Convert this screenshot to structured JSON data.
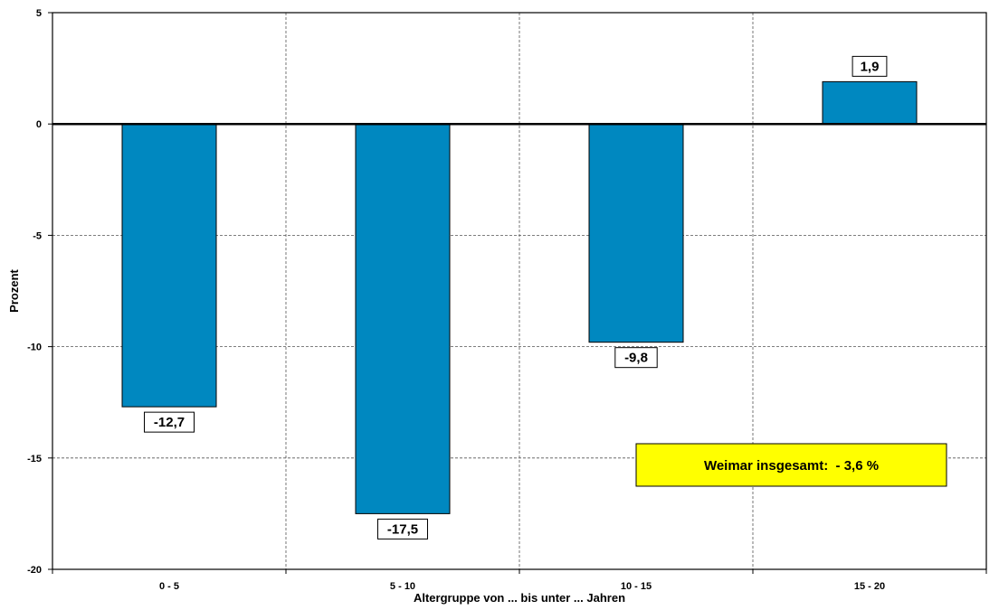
{
  "chart_data": {
    "type": "bar",
    "categories": [
      "0 - 5",
      "5 - 10",
      "10 - 15",
      "15 - 20"
    ],
    "values": [
      -12.7,
      -17.5,
      -9.8,
      1.9
    ],
    "value_labels": [
      "-12,7",
      "-17,5",
      "-9,8",
      "1,9"
    ],
    "title": "",
    "xlabel": "Altergruppe von ... bis unter ... Jahren",
    "ylabel": "Prozent",
    "ylim": [
      -20,
      5
    ],
    "yticks": [
      5,
      0,
      -5,
      -10,
      -15,
      -20
    ],
    "ytick_labels": [
      "5",
      "0",
      "-5",
      "-10",
      "-15",
      "-20"
    ],
    "grid": true,
    "grid_style": "dashed",
    "bar_color": "#0088C0",
    "annotation": {
      "text": "Weimar insgesamt:  - 3,6 %",
      "background": "#FFFF00"
    }
  }
}
